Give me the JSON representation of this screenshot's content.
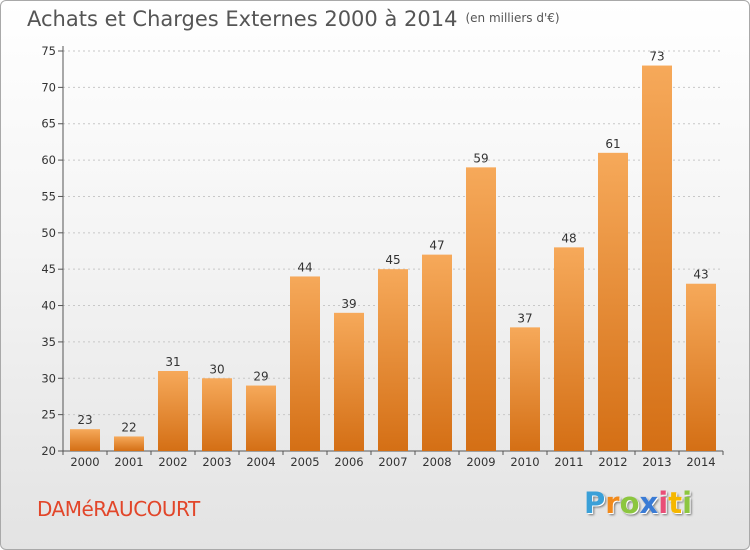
{
  "title": "Achats et Charges Externes 2000 à 2014",
  "subtitle": "(en milliers d'€)",
  "commune": "DAMéRAUCOURT",
  "logo": {
    "letters": [
      "P",
      "r",
      "o",
      "x",
      "i",
      "t",
      "i"
    ],
    "colors": [
      "#3aa0d8",
      "#f18a1c",
      "#8cc63f",
      "#3a7bd5",
      "#e94e77",
      "#f5b700",
      "#8cc63f"
    ]
  },
  "colors": {
    "bar_light": "#f6a95a",
    "bar_dark": "#d46f15",
    "grid": "#c8c8c8"
  },
  "chart_data": {
    "type": "bar",
    "title": "Achats et Charges Externes 2000 à 2014",
    "xlabel": "",
    "ylabel": "",
    "categories": [
      "2000",
      "2001",
      "2002",
      "2003",
      "2004",
      "2005",
      "2006",
      "2007",
      "2008",
      "2009",
      "2010",
      "2011",
      "2012",
      "2013",
      "2014"
    ],
    "values": [
      23,
      22,
      31,
      30,
      29,
      44,
      39,
      45,
      47,
      59,
      37,
      48,
      61,
      73,
      43
    ],
    "ylim": [
      20,
      75
    ],
    "yticks": [
      20,
      25,
      30,
      35,
      40,
      45,
      50,
      55,
      60,
      65,
      70,
      75
    ],
    "grid": true
  }
}
